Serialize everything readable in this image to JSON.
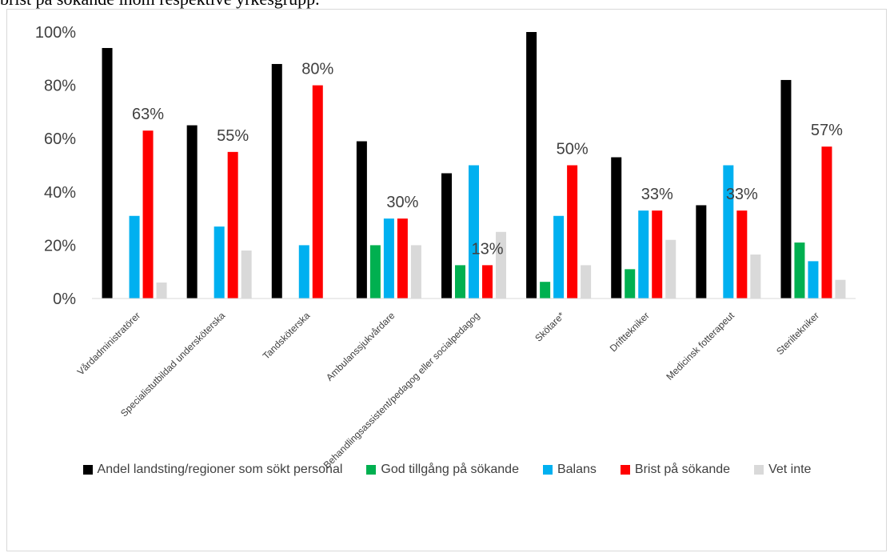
{
  "caption": "brist på sökande inom respektive yrkesgrupp.",
  "chart_data": {
    "type": "bar",
    "title": "",
    "xlabel": "",
    "ylabel": "",
    "ylim": [
      0,
      1
    ],
    "y_ticks": [
      "0%",
      "20%",
      "40%",
      "60%",
      "80%",
      "100%"
    ],
    "grid": false,
    "legend_position": "bottom",
    "categories": [
      "Vårdadministratörer",
      "Specialistutbildad undersköterska",
      "Tandsköterska",
      "Ambulanssjukvårdare",
      "Behandlingsassistent/pedagog eller socialpedagog",
      "Skötare*",
      "Drifttekniker",
      "Medicinsk fotterapeut",
      "Steriltekniker"
    ],
    "series": [
      {
        "name": "Andel landsting/regioner som sökt  personal",
        "color": "#000000",
        "values": [
          0.94,
          0.65,
          0.88,
          0.59,
          0.47,
          1.0,
          0.53,
          0.35,
          0.82
        ]
      },
      {
        "name": "God tillgång på sökande",
        "color": "#00b050",
        "values": [
          0,
          0,
          0,
          0.2,
          0.125,
          0.0625,
          0.11,
          0,
          0.21
        ]
      },
      {
        "name": "Balans",
        "color": "#00b0f0",
        "values": [
          0.31,
          0.27,
          0.2,
          0.3,
          0.5,
          0.31,
          0.33,
          0.5,
          0.14
        ]
      },
      {
        "name": "Brist på sökande",
        "color": "#ff0000",
        "values": [
          0.63,
          0.55,
          0.8,
          0.3,
          0.125,
          0.5,
          0.33,
          0.33,
          0.57
        ]
      },
      {
        "name": "Vet inte",
        "color": "#d9d9d9",
        "values": [
          0.06,
          0.18,
          0,
          0.2,
          0.25,
          0.125,
          0.22,
          0.165,
          0.07
        ]
      }
    ],
    "data_labels": [
      "63%",
      "55%",
      "80%",
      "30%",
      "13%",
      "50%",
      "33%",
      "33%",
      "57%"
    ]
  }
}
